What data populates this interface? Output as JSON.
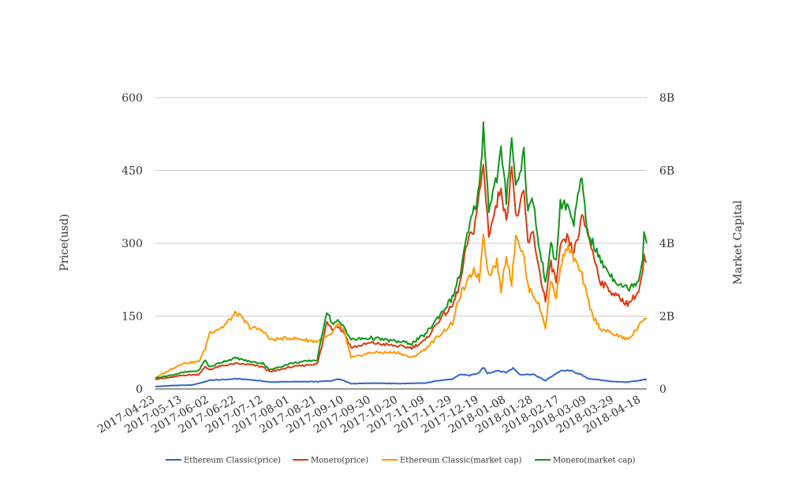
{
  "chart_data": {
    "type": "line",
    "title": "",
    "ylabel_left": "Price(usd)",
    "ylabel_right": "Market Capital",
    "ylim_left": [
      0,
      600
    ],
    "ylim_right": [
      0,
      8000000000
    ],
    "yticks_left": [
      "0",
      "150",
      "300",
      "450",
      "600"
    ],
    "yticks_right": [
      "0",
      "2B",
      "4B",
      "6B",
      "8B"
    ],
    "xlim": [
      "2017-04-23",
      "2018-04-22"
    ],
    "xticks": [
      "2017-04-23",
      "2017-05-13",
      "2017-06-02",
      "2017-06-22",
      "2017-07-12",
      "2017-08-01",
      "2017-08-21",
      "2017-09-10",
      "2017-09-30",
      "2017-10-20",
      "2017-11-09",
      "2017-11-29",
      "2017-12-19",
      "2018-01-08",
      "2018-01-28",
      "2018-02-17",
      "2018-03-09",
      "2018-03-29",
      "2018-04-18"
    ],
    "grid": "horizontal",
    "legend_position": "bottom",
    "colors": {
      "etc_price": "#3366cc",
      "xmr_price": "#dc3912",
      "etc_cap": "#ff9900",
      "xmr_cap": "#109618"
    },
    "series": [
      {
        "name": "Ethereum Classic(price)",
        "axis": "left",
        "key": "etc_price",
        "points": [
          [
            "2017-04-23",
            5
          ],
          [
            "2017-05-05",
            7
          ],
          [
            "2017-05-20",
            8
          ],
          [
            "2017-05-30",
            15
          ],
          [
            "2017-06-02",
            18
          ],
          [
            "2017-06-12",
            19
          ],
          [
            "2017-06-22",
            21
          ],
          [
            "2017-07-02",
            19
          ],
          [
            "2017-07-12",
            16
          ],
          [
            "2017-07-17",
            14
          ],
          [
            "2017-08-01",
            15
          ],
          [
            "2017-08-21",
            15
          ],
          [
            "2017-09-01",
            17
          ],
          [
            "2017-09-05",
            21
          ],
          [
            "2017-09-10",
            17
          ],
          [
            "2017-09-15",
            11
          ],
          [
            "2017-09-30",
            12
          ],
          [
            "2017-10-20",
            11
          ],
          [
            "2017-11-09",
            12
          ],
          [
            "2017-11-20",
            18
          ],
          [
            "2017-11-29",
            20
          ],
          [
            "2017-12-05",
            30
          ],
          [
            "2017-12-12",
            28
          ],
          [
            "2017-12-19",
            33
          ],
          [
            "2017-12-22",
            45
          ],
          [
            "2017-12-25",
            32
          ],
          [
            "2018-01-01",
            38
          ],
          [
            "2018-01-08",
            34
          ],
          [
            "2018-01-13",
            43
          ],
          [
            "2018-01-18",
            30
          ],
          [
            "2018-01-28",
            30
          ],
          [
            "2018-02-06",
            17
          ],
          [
            "2018-02-10",
            25
          ],
          [
            "2018-02-17",
            37
          ],
          [
            "2018-02-24",
            38
          ],
          [
            "2018-03-04",
            30
          ],
          [
            "2018-03-09",
            22
          ],
          [
            "2018-03-19",
            18
          ],
          [
            "2018-03-29",
            15
          ],
          [
            "2018-04-08",
            14
          ],
          [
            "2018-04-22",
            20
          ]
        ]
      },
      {
        "name": "Monero(price)",
        "axis": "left",
        "key": "xmr_price",
        "points": [
          [
            "2017-04-23",
            20
          ],
          [
            "2017-05-05",
            24
          ],
          [
            "2017-05-13",
            28
          ],
          [
            "2017-05-25",
            30
          ],
          [
            "2017-05-30",
            45
          ],
          [
            "2017-06-02",
            40
          ],
          [
            "2017-06-12",
            48
          ],
          [
            "2017-06-22",
            52
          ],
          [
            "2017-07-02",
            50
          ],
          [
            "2017-07-12",
            45
          ],
          [
            "2017-07-17",
            35
          ],
          [
            "2017-08-01",
            45
          ],
          [
            "2017-08-21",
            52
          ],
          [
            "2017-08-25",
            95
          ],
          [
            "2017-08-28",
            140
          ],
          [
            "2017-09-01",
            125
          ],
          [
            "2017-09-05",
            130
          ],
          [
            "2017-09-10",
            115
          ],
          [
            "2017-09-15",
            85
          ],
          [
            "2017-09-30",
            95
          ],
          [
            "2017-10-20",
            88
          ],
          [
            "2017-10-30",
            85
          ],
          [
            "2017-11-09",
            100
          ],
          [
            "2017-11-20",
            145
          ],
          [
            "2017-11-29",
            170
          ],
          [
            "2017-12-05",
            220
          ],
          [
            "2017-12-10",
            300
          ],
          [
            "2017-12-15",
            330
          ],
          [
            "2017-12-19",
            400
          ],
          [
            "2017-12-22",
            460
          ],
          [
            "2017-12-26",
            320
          ],
          [
            "2018-01-01",
            380
          ],
          [
            "2018-01-04",
            420
          ],
          [
            "2018-01-08",
            340
          ],
          [
            "2018-01-12",
            470
          ],
          [
            "2018-01-15",
            350
          ],
          [
            "2018-01-21",
            400
          ],
          [
            "2018-01-24",
            300
          ],
          [
            "2018-01-28",
            320
          ],
          [
            "2018-02-01",
            250
          ],
          [
            "2018-02-06",
            180
          ],
          [
            "2018-02-10",
            260
          ],
          [
            "2018-02-14",
            220
          ],
          [
            "2018-02-17",
            290
          ],
          [
            "2018-02-22",
            310
          ],
          [
            "2018-02-27",
            280
          ],
          [
            "2018-03-05",
            350
          ],
          [
            "2018-03-09",
            330
          ],
          [
            "2018-03-13",
            280
          ],
          [
            "2018-03-19",
            220
          ],
          [
            "2018-03-29",
            195
          ],
          [
            "2018-04-08",
            175
          ],
          [
            "2018-04-16",
            200
          ],
          [
            "2018-04-19",
            240
          ],
          [
            "2018-04-20",
            270
          ],
          [
            "2018-04-22",
            255
          ]
        ]
      },
      {
        "name": "Ethereum Classic(market cap)",
        "axis": "right",
        "key": "etc_cap",
        "points": [
          [
            "2017-04-23",
            300000000
          ],
          [
            "2017-05-05",
            550000000
          ],
          [
            "2017-05-13",
            700000000
          ],
          [
            "2017-05-25",
            750000000
          ],
          [
            "2017-05-30",
            1100000000
          ],
          [
            "2017-06-02",
            1550000000
          ],
          [
            "2017-06-12",
            1700000000
          ],
          [
            "2017-06-22",
            2100000000
          ],
          [
            "2017-07-02",
            1700000000
          ],
          [
            "2017-07-12",
            1600000000
          ],
          [
            "2017-07-17",
            1350000000
          ],
          [
            "2017-08-01",
            1400000000
          ],
          [
            "2017-08-21",
            1300000000
          ],
          [
            "2017-09-01",
            1500000000
          ],
          [
            "2017-09-05",
            1800000000
          ],
          [
            "2017-09-10",
            1550000000
          ],
          [
            "2017-09-15",
            850000000
          ],
          [
            "2017-09-30",
            1000000000
          ],
          [
            "2017-10-20",
            1000000000
          ],
          [
            "2017-10-30",
            850000000
          ],
          [
            "2017-11-09",
            1100000000
          ],
          [
            "2017-11-20",
            1500000000
          ],
          [
            "2017-11-29",
            1800000000
          ],
          [
            "2017-12-05",
            2600000000
          ],
          [
            "2017-12-10",
            2900000000
          ],
          [
            "2017-12-15",
            3300000000
          ],
          [
            "2017-12-19",
            3000000000
          ],
          [
            "2017-12-22",
            4300000000
          ],
          [
            "2017-12-26",
            3100000000
          ],
          [
            "2018-01-01",
            3500000000
          ],
          [
            "2018-01-04",
            2700000000
          ],
          [
            "2018-01-08",
            3700000000
          ],
          [
            "2018-01-12",
            2900000000
          ],
          [
            "2018-01-15",
            4300000000
          ],
          [
            "2018-01-21",
            3600000000
          ],
          [
            "2018-01-24",
            2800000000
          ],
          [
            "2018-01-28",
            2600000000
          ],
          [
            "2018-02-01",
            2300000000
          ],
          [
            "2018-02-06",
            1700000000
          ],
          [
            "2018-02-10",
            3000000000
          ],
          [
            "2018-02-14",
            2500000000
          ],
          [
            "2018-02-17",
            3400000000
          ],
          [
            "2018-02-22",
            3900000000
          ],
          [
            "2018-02-27",
            3600000000
          ],
          [
            "2018-03-05",
            3100000000
          ],
          [
            "2018-03-09",
            2500000000
          ],
          [
            "2018-03-13",
            2000000000
          ],
          [
            "2018-03-19",
            1650000000
          ],
          [
            "2018-03-29",
            1500000000
          ],
          [
            "2018-04-08",
            1350000000
          ],
          [
            "2018-04-16",
            1700000000
          ],
          [
            "2018-04-20",
            1950000000
          ],
          [
            "2018-04-22",
            1950000000
          ]
        ]
      },
      {
        "name": "Monero(market cap)",
        "axis": "right",
        "key": "xmr_cap",
        "points": [
          [
            "2017-04-23",
            300000000
          ],
          [
            "2017-05-05",
            380000000
          ],
          [
            "2017-05-13",
            450000000
          ],
          [
            "2017-05-25",
            500000000
          ],
          [
            "2017-05-30",
            800000000
          ],
          [
            "2017-06-02",
            600000000
          ],
          [
            "2017-06-12",
            750000000
          ],
          [
            "2017-06-22",
            850000000
          ],
          [
            "2017-07-02",
            750000000
          ],
          [
            "2017-07-12",
            700000000
          ],
          [
            "2017-07-17",
            520000000
          ],
          [
            "2017-08-01",
            700000000
          ],
          [
            "2017-08-21",
            800000000
          ],
          [
            "2017-08-25",
            1600000000
          ],
          [
            "2017-08-28",
            2150000000
          ],
          [
            "2017-09-01",
            1800000000
          ],
          [
            "2017-09-05",
            1850000000
          ],
          [
            "2017-09-10",
            1700000000
          ],
          [
            "2017-09-15",
            1350000000
          ],
          [
            "2017-09-30",
            1400000000
          ],
          [
            "2017-10-20",
            1300000000
          ],
          [
            "2017-10-30",
            1250000000
          ],
          [
            "2017-11-09",
            1500000000
          ],
          [
            "2017-11-20",
            2050000000
          ],
          [
            "2017-11-29",
            2500000000
          ],
          [
            "2017-12-05",
            3200000000
          ],
          [
            "2017-12-10",
            4200000000
          ],
          [
            "2017-12-15",
            4900000000
          ],
          [
            "2017-12-19",
            5500000000
          ],
          [
            "2017-12-22",
            7250000000
          ],
          [
            "2017-12-26",
            5000000000
          ],
          [
            "2018-01-01",
            5800000000
          ],
          [
            "2018-01-04",
            6500000000
          ],
          [
            "2018-01-08",
            5200000000
          ],
          [
            "2018-01-12",
            7000000000
          ],
          [
            "2018-01-15",
            5500000000
          ],
          [
            "2018-01-21",
            6500000000
          ],
          [
            "2018-01-24",
            4900000000
          ],
          [
            "2018-01-28",
            5200000000
          ],
          [
            "2018-02-01",
            3900000000
          ],
          [
            "2018-02-06",
            3000000000
          ],
          [
            "2018-02-10",
            3900000000
          ],
          [
            "2018-02-14",
            3500000000
          ],
          [
            "2018-02-17",
            5100000000
          ],
          [
            "2018-02-22",
            5000000000
          ],
          [
            "2018-02-27",
            4600000000
          ],
          [
            "2018-03-05",
            5800000000
          ],
          [
            "2018-03-09",
            4300000000
          ],
          [
            "2018-03-13",
            4000000000
          ],
          [
            "2018-03-19",
            3500000000
          ],
          [
            "2018-03-29",
            3000000000
          ],
          [
            "2018-04-08",
            2750000000
          ],
          [
            "2018-04-16",
            3000000000
          ],
          [
            "2018-04-19",
            3600000000
          ],
          [
            "2018-04-20",
            4300000000
          ],
          [
            "2018-04-22",
            4100000000
          ]
        ]
      }
    ]
  }
}
